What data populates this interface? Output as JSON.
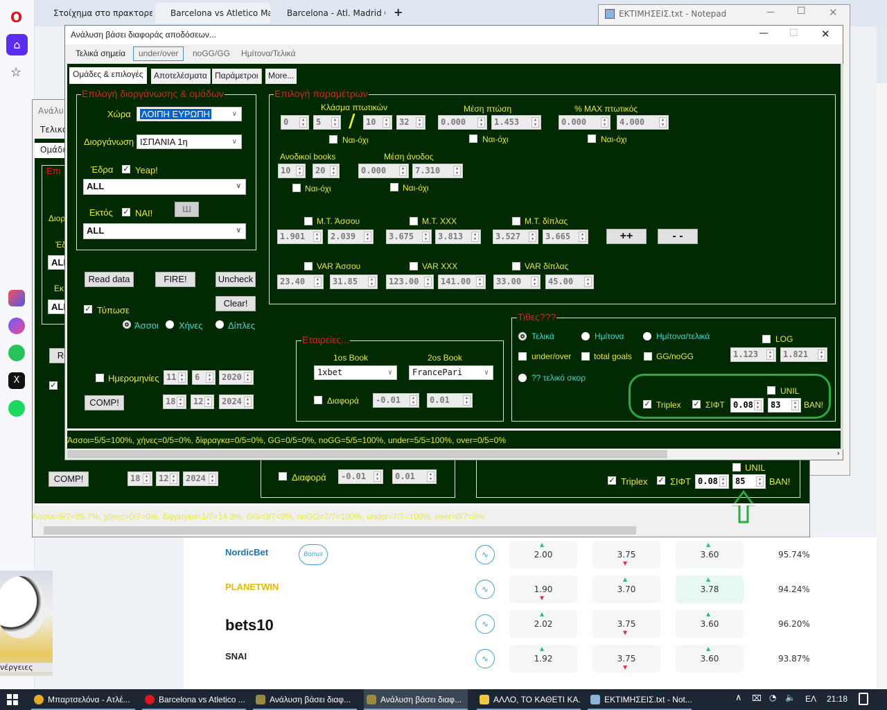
{
  "browser": {
    "tabs": [
      {
        "label": "Στοίχημα στο πρακτορείο"
      },
      {
        "label": "Barcelona vs Atletico Madrid"
      },
      {
        "label": "Barcelona - Atl. Madrid Odds"
      }
    ],
    "new_tab": "+",
    "side_ad_caption": "νέργειες"
  },
  "notepad": {
    "title": "ΕΚΤΙΜΗΣΕΙΣ.txt - Notepad"
  },
  "main_window": {
    "title": "Ανάλυση βάσει διαφοράς αποδόσεων...",
    "menu_tabs": [
      "Τελικά σημεία",
      "under/over",
      "noGG/GG",
      "Ημίτονα/Τελικά"
    ],
    "inner_tabs": [
      "Ομάδες & επιλογές",
      "Αποτελέσματα",
      "Παράμετροι",
      "More..."
    ],
    "teams_group": {
      "title": "Επιλογή διοργάνωσης & ομάδων",
      "country_label": "Χώρα",
      "country_value": "ΛΟΙΠΗ ΕΥΡΩΠΗ",
      "competition_label": "Διοργάνωση",
      "competition_value": "ΙΣΠΑΝΙΑ 1η",
      "home_label": "Έδρα",
      "home_check": "Yeap!",
      "home_value": "ALL",
      "away_label": "Εκτός",
      "away_check": "ΝΑΙ!",
      "away_value": "ALL",
      "w_button": "Ш"
    },
    "buttons": {
      "read": "Read data",
      "fire": "FIRE!",
      "uncheck": "Uncheck",
      "clear": "Clear!",
      "comp": "COMP!"
    },
    "print_label": "Τύπωσε",
    "radios": [
      "Άσσοι",
      "Χήνες",
      "Δίπλες"
    ],
    "dates_label": "Ημερομηνίες",
    "date_from": [
      "11",
      "6",
      "2020"
    ],
    "date_to": [
      "18",
      "12",
      "2024"
    ],
    "params": {
      "title": "Επιλογή παραμέτρων",
      "yesno": "Ναι-όχι",
      "fraction_label": "Κλάσμα πτωτικών",
      "fraction": [
        "0",
        "5",
        "10",
        "32"
      ],
      "slash": "/",
      "avg_drop_label": "Μέση πτώση",
      "avg_drop": [
        "0.000",
        "1.453"
      ],
      "max_drop_label": "% MAX πτωτικός",
      "max_drop": [
        "0.000",
        "4.000"
      ],
      "rising_label": "Ανοδικοί books",
      "rising": [
        "10",
        "20"
      ],
      "avg_rise_label": "Μέση άνοδος",
      "avg_rise": [
        "0.000",
        "7.310"
      ],
      "mt_labels": [
        "M.T. Άσσου",
        "M.T. XXX",
        "M.T. δίπλας"
      ],
      "mt_values": [
        "1.901",
        "2.039",
        "3.675",
        "3.813",
        "3.527",
        "3.665"
      ],
      "plus_button": "++",
      "minus_button": "- -",
      "var_labels": [
        "VAR Άσσου",
        "VAR XXX",
        "VAR δίπλας"
      ],
      "var_values": [
        "23.40",
        "31.85",
        "123.00",
        "141.00",
        "33.00",
        "45.00"
      ]
    },
    "companies": {
      "title": "Εταιρείες...",
      "book1_label": "1os Book",
      "book1": "1xbet",
      "book2_label": "2os Book",
      "book2": "FrancePari",
      "diff_label": "Διαφορά",
      "diff": [
        "-0.01",
        "0.01"
      ]
    },
    "bets": {
      "title": "Τιθες???",
      "radios": [
        "Τελικά",
        "Ημίτονα",
        "Ημίτονα/τελικά"
      ],
      "checks": [
        "under/over",
        "total goals",
        "GG/noGG"
      ],
      "log_label": "LOG",
      "log_values": [
        "1.123",
        "1.821"
      ],
      "score_label": "?? τελικό σκορ",
      "unil_label": "UNIL",
      "triplex_label": "Triplex",
      "sift_label": "ΣΙΦΤ",
      "sift_value": "0.08",
      "ban_value": "83",
      "ban_label": "BAN!"
    },
    "status": "Άσσοι=5/5=100%, χήνες=0/5=0%, δίφραγκα=0/5=0%, GG=0/5=0%, noGG=5/5=100%, under=5/5=100%, over=0/5=0%"
  },
  "back_window": {
    "title": "Ανάλυ",
    "menu_tab": "Τελικά",
    "inner_tab": "Ομάδε",
    "group_title": "Επι",
    "labels": [
      "Διορ",
      "Έδ",
      "Εκ"
    ],
    "combo_values": [
      "ALL",
      "ALL"
    ],
    "read_button": "Re",
    "comp_button": "COMP!",
    "date_to": [
      "18",
      "12",
      "2024"
    ],
    "diff_label": "Διαφορά",
    "diff": [
      "-0.01",
      "0.01"
    ],
    "unil_label": "UNIL",
    "triplex_label": "Triplex",
    "sift_label": "ΣΙΦΤ",
    "sift_value": "0.08",
    "ban_value": "85",
    "ban_label": "BAN!",
    "status": "Άσσοι=6/7=85.7%, χήνες=0/7=0%, δίφραγκα=1/7=14.3%, GG=0/7=0%, noGG=7/7=100%, under=7/7=100%, over=0/7=0%"
  },
  "odds_rows": [
    {
      "bookmaker": "NordicBet",
      "bonus": "Bonus",
      "odds": [
        {
          "v": "2.00",
          "dir": "up"
        },
        {
          "v": "3.75",
          "dir": "down"
        },
        {
          "v": "3.60",
          "dir": "up"
        }
      ],
      "payout": "95.74%",
      "color": "#1d6fb8"
    },
    {
      "bookmaker": "PLANETWIN",
      "bonus": "",
      "odds": [
        {
          "v": "1.90",
          "dir": "down"
        },
        {
          "v": "3.70",
          "dir": "up"
        },
        {
          "v": "3.78",
          "dir": "up",
          "best": true
        }
      ],
      "payout": "94.24%",
      "color": "#e8b800"
    },
    {
      "bookmaker": "bets10",
      "bonus": "",
      "odds": [
        {
          "v": "2.02",
          "dir": "up"
        },
        {
          "v": "3.75",
          "dir": "down"
        },
        {
          "v": "3.60",
          "dir": "up"
        }
      ],
      "payout": "96.20%",
      "color": "#111111"
    },
    {
      "bookmaker": "SNAI",
      "bonus": "",
      "odds": [
        {
          "v": "1.92",
          "dir": "up"
        },
        {
          "v": "3.75",
          "dir": "down"
        },
        {
          "v": "3.60",
          "dir": "up"
        }
      ],
      "payout": "93.87%",
      "color": "#222222"
    }
  ],
  "taskbar": {
    "items": [
      "Μπαρτσελόνα - Ατλέ...",
      "Barcelona vs Atletico ...",
      "Ανάλυση βάσει διαφ...",
      "Ανάλυση βάσει διαφ...",
      "ΑΛΛΟ, ΤΟ ΚΑΘΕΤΙ ΚΑ...",
      "ΕΚΤΙΜΗΣΕΙΣ.txt - Not..."
    ],
    "language": "ΕΛ",
    "time": "21:18"
  },
  "colors": {
    "app_bg": "#012a03",
    "label": "#e8e840",
    "group_title": "#d8261c",
    "radio_label": "#40d8d0",
    "highlight_ring": "#2aa84a"
  }
}
